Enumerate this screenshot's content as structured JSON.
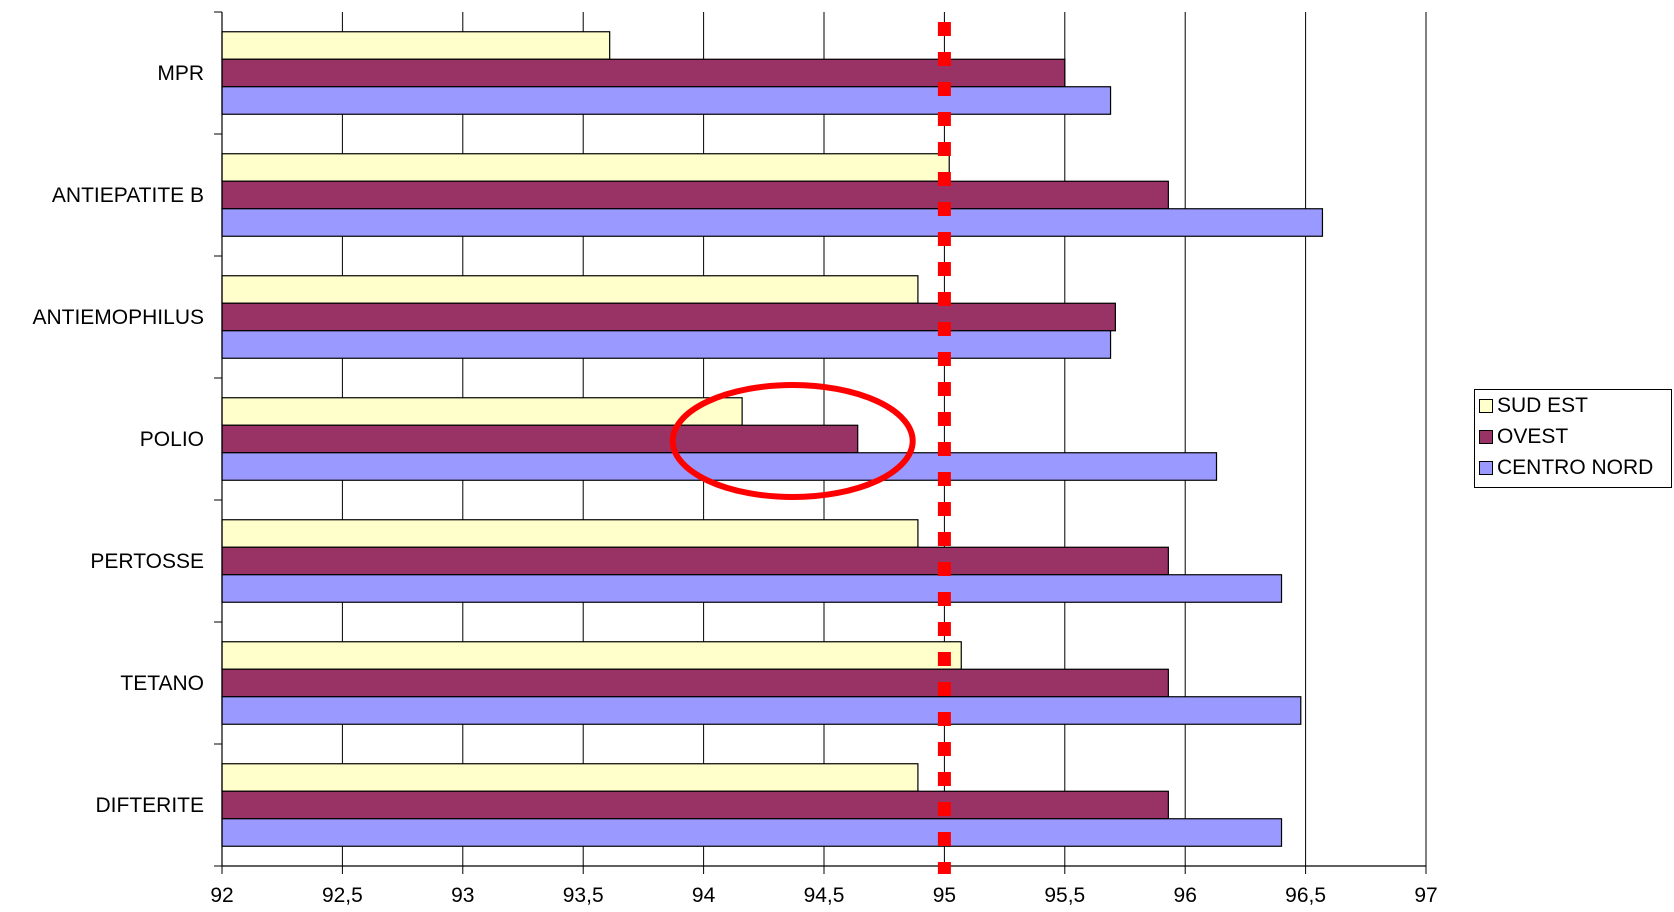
{
  "chart_data": {
    "type": "bar",
    "orientation": "horizontal",
    "categories": [
      "MPR",
      "ANTIEPATITE B",
      "ANTIEMOPHILUS",
      "POLIO",
      "PERTOSSE",
      "TETANO",
      "DIFTERITE"
    ],
    "series": [
      {
        "name": "SUD EST",
        "color": "#FFFFCC",
        "values": [
          93.61,
          95.02,
          94.89,
          94.16,
          94.89,
          95.07,
          94.89
        ]
      },
      {
        "name": "OVEST",
        "color": "#993366",
        "values": [
          95.5,
          95.93,
          95.71,
          94.64,
          95.93,
          95.93,
          95.93
        ]
      },
      {
        "name": "CENTRO NORD",
        "color": "#9999FF",
        "values": [
          95.69,
          96.57,
          95.69,
          96.13,
          96.4,
          96.48,
          96.4
        ]
      }
    ],
    "xlim": [
      92,
      97
    ],
    "xticks": [
      "92",
      "92,5",
      "93",
      "93,5",
      "94",
      "94,5",
      "95",
      "95,5",
      "96",
      "96,5",
      "97"
    ],
    "reference_line": {
      "value": 95,
      "color": "#FF0000",
      "style": "dotted"
    },
    "highlight": {
      "category": "POLIO",
      "series": "OVEST",
      "shape": "ellipse",
      "color": "#FF0000"
    },
    "grid": true,
    "legend_position": "right"
  }
}
